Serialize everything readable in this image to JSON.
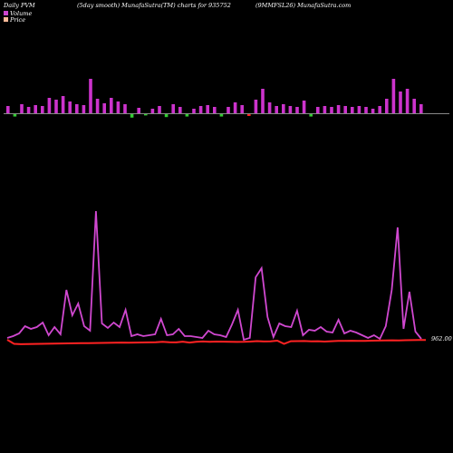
{
  "header": {
    "left": "Daily PVM",
    "center1": "(5day smooth) MunafaSutra(TM) charts for 935752",
    "center2": "(9MMFSL26) MunafaSutra.com"
  },
  "legend": {
    "volume_label": "Volume",
    "price_label": "Price",
    "volume_color": "#cc44cc",
    "price_color": "#ffbb99"
  },
  "colors": {
    "volume_up": "#cc33cc",
    "volume_down": "#33cc33",
    "volume_red": "#ff2222",
    "volume_line": "#d048d0",
    "price_line": "#ff2222",
    "baseline": "#888888"
  },
  "chart_data": {
    "type": "bar+line",
    "price_label_text": "962.00",
    "volume_bars": [
      {
        "v": 8,
        "c": "up"
      },
      {
        "v": 6,
        "c": "down"
      },
      {
        "v": 10,
        "c": "up"
      },
      {
        "v": 7,
        "c": "up"
      },
      {
        "v": 9,
        "c": "up"
      },
      {
        "v": 8,
        "c": "up"
      },
      {
        "v": 17,
        "c": "up"
      },
      {
        "v": 15,
        "c": "up"
      },
      {
        "v": 19,
        "c": "up"
      },
      {
        "v": 13,
        "c": "up"
      },
      {
        "v": 10,
        "c": "up"
      },
      {
        "v": 9,
        "c": "up"
      },
      {
        "v": 38,
        "c": "up"
      },
      {
        "v": 16,
        "c": "up"
      },
      {
        "v": 11,
        "c": "up"
      },
      {
        "v": 17,
        "c": "up"
      },
      {
        "v": 13,
        "c": "up"
      },
      {
        "v": 10,
        "c": "up"
      },
      {
        "v": 8,
        "c": "down"
      },
      {
        "v": 6,
        "c": "up"
      },
      {
        "v": 4,
        "c": "down"
      },
      {
        "v": 5,
        "c": "up"
      },
      {
        "v": 8,
        "c": "up"
      },
      {
        "v": 7,
        "c": "down"
      },
      {
        "v": 10,
        "c": "up"
      },
      {
        "v": 7,
        "c": "up"
      },
      {
        "v": 6,
        "c": "down"
      },
      {
        "v": 5,
        "c": "up"
      },
      {
        "v": 8,
        "c": "up"
      },
      {
        "v": 9,
        "c": "up"
      },
      {
        "v": 7,
        "c": "up"
      },
      {
        "v": 6,
        "c": "down"
      },
      {
        "v": 7,
        "c": "up"
      },
      {
        "v": 12,
        "c": "up"
      },
      {
        "v": 9,
        "c": "up"
      },
      {
        "v": 5,
        "c": "red"
      },
      {
        "v": 15,
        "c": "up"
      },
      {
        "v": 27,
        "c": "up"
      },
      {
        "v": 12,
        "c": "up"
      },
      {
        "v": 8,
        "c": "up"
      },
      {
        "v": 10,
        "c": "up"
      },
      {
        "v": 8,
        "c": "up"
      },
      {
        "v": 7,
        "c": "up"
      },
      {
        "v": 14,
        "c": "up"
      },
      {
        "v": 6,
        "c": "down"
      },
      {
        "v": 7,
        "c": "up"
      },
      {
        "v": 8,
        "c": "up"
      },
      {
        "v": 7,
        "c": "up"
      },
      {
        "v": 9,
        "c": "up"
      },
      {
        "v": 8,
        "c": "up"
      },
      {
        "v": 7,
        "c": "up"
      },
      {
        "v": 8,
        "c": "up"
      },
      {
        "v": 7,
        "c": "up"
      },
      {
        "v": 5,
        "c": "up"
      },
      {
        "v": 8,
        "c": "up"
      },
      {
        "v": 16,
        "c": "up"
      },
      {
        "v": 38,
        "c": "up"
      },
      {
        "v": 24,
        "c": "up"
      },
      {
        "v": 27,
        "c": "up"
      },
      {
        "v": 16,
        "c": "up"
      },
      {
        "v": 10,
        "c": "up"
      }
    ],
    "volume_line": [
      5,
      7,
      10,
      18,
      15,
      17,
      22,
      8,
      17,
      9,
      58,
      30,
      43,
      18,
      13,
      145,
      21,
      16,
      22,
      17,
      36,
      7,
      9,
      7,
      8,
      9,
      26,
      8,
      9,
      15,
      7,
      7,
      6,
      5,
      13,
      9,
      8,
      6,
      20,
      36,
      3,
      5,
      72,
      82,
      28,
      6,
      21,
      18,
      17,
      35,
      8,
      14,
      13,
      17,
      12,
      11,
      25,
      10,
      13,
      11,
      8,
      5,
      8,
      4,
      18,
      58,
      127,
      15,
      56,
      12,
      4
    ],
    "price_line": [
      962.5,
      958,
      957.6,
      957.8,
      957.9,
      958,
      958.1,
      958.2,
      958.4,
      958.5,
      958.6,
      958.7,
      958.8,
      958.9,
      959,
      959.1,
      959.2,
      959.4,
      959.3,
      959.4,
      959.5,
      959.6,
      959.8,
      960.3,
      959.7,
      959.6,
      960.4,
      959.4,
      960.2,
      960.6,
      960.3,
      960.5,
      960.4,
      960.3,
      960.1,
      960.2,
      960.5,
      961,
      960.6,
      960.7,
      961.5,
      958,
      960.9,
      961,
      961.1,
      960.8,
      960.9,
      960.5,
      960.9,
      961.2,
      961.3,
      961.4,
      961.2,
      961.3,
      961.5,
      961.6,
      961.7,
      961.9,
      961.8,
      962,
      962.1,
      962.2,
      962.3
    ]
  }
}
